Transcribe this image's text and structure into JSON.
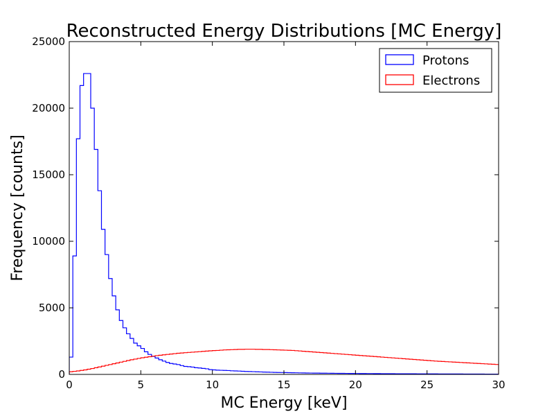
{
  "chart_data": {
    "type": "step-histogram",
    "title": "Reconstructed Energy Distributions [MC Energy]",
    "xlabel": "MC Energy [keV]",
    "ylabel": "Frequency [counts]",
    "xlim": [
      0,
      30
    ],
    "ylim": [
      0,
      25000
    ],
    "x_ticks": [
      0,
      5,
      10,
      15,
      20,
      25,
      30
    ],
    "y_ticks": [
      0,
      5000,
      10000,
      15000,
      20000,
      25000
    ],
    "grid": false,
    "legend_position": "top-right",
    "bin_width": 0.25,
    "series": [
      {
        "name": "Protons",
        "color": "#0000ff",
        "values": [
          1300,
          8900,
          17700,
          21700,
          22600,
          22600,
          20000,
          16900,
          13800,
          10900,
          9000,
          7200,
          5900,
          4850,
          4050,
          3500,
          3050,
          2700,
          2350,
          2150,
          1950,
          1700,
          1500,
          1350,
          1230,
          1100,
          1000,
          900,
          820,
          780,
          740,
          660,
          600,
          580,
          550,
          500,
          480,
          450,
          420,
          360,
          340,
          320,
          310,
          300,
          290,
          270,
          260,
          250,
          235,
          220,
          215,
          205,
          195,
          185,
          175,
          170,
          160,
          150,
          145,
          140,
          135,
          130,
          125,
          120,
          115,
          110,
          106,
          102,
          99,
          96,
          93,
          90,
          87,
          85,
          82,
          80,
          77,
          75,
          73,
          71,
          69,
          67,
          65,
          63,
          61,
          59,
          57,
          56,
          54,
          52,
          51,
          50,
          48,
          47,
          46,
          45,
          44,
          43,
          42,
          41,
          40,
          39,
          38,
          37,
          36,
          35,
          34,
          33,
          32,
          31,
          30,
          29,
          28,
          27,
          26,
          25,
          24,
          23,
          22,
          21
        ]
      },
      {
        "name": "Electrons",
        "color": "#ff0000",
        "values": [
          200,
          230,
          260,
          300,
          340,
          390,
          440,
          500,
          560,
          620,
          680,
          740,
          800,
          860,
          920,
          980,
          1040,
          1100,
          1150,
          1200,
          1250,
          1290,
          1330,
          1370,
          1410,
          1440,
          1470,
          1500,
          1530,
          1560,
          1590,
          1610,
          1630,
          1650,
          1670,
          1690,
          1710,
          1730,
          1750,
          1770,
          1790,
          1800,
          1820,
          1840,
          1850,
          1860,
          1870,
          1880,
          1880,
          1890,
          1890,
          1890,
          1880,
          1880,
          1870,
          1870,
          1860,
          1850,
          1840,
          1830,
          1820,
          1810,
          1800,
          1780,
          1760,
          1740,
          1720,
          1700,
          1680,
          1660,
          1640,
          1620,
          1600,
          1580,
          1560,
          1540,
          1520,
          1500,
          1480,
          1460,
          1440,
          1420,
          1400,
          1380,
          1360,
          1340,
          1320,
          1300,
          1280,
          1260,
          1240,
          1220,
          1200,
          1180,
          1160,
          1140,
          1120,
          1100,
          1080,
          1060,
          1040,
          1020,
          1000,
          985,
          970,
          955,
          940,
          925,
          910,
          895,
          880,
          865,
          850,
          835,
          820,
          805,
          790,
          775,
          760,
          745
        ]
      }
    ]
  }
}
